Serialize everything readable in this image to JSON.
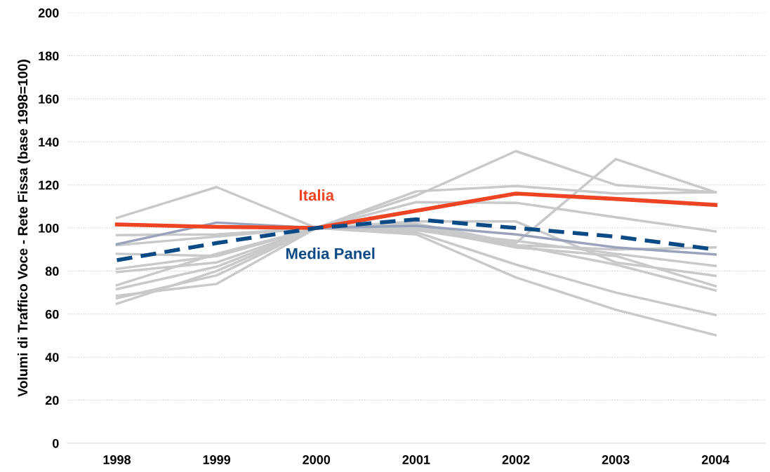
{
  "chart_data": {
    "type": "line",
    "ylabel": "Volumi di Traffico Voce - Rete Fissa (base 1998=100)",
    "categories": [
      "1998",
      "1999",
      "2000",
      "2001",
      "2002",
      "2003",
      "2004"
    ],
    "ylim": [
      0,
      200
    ],
    "yticks": [
      0,
      20,
      40,
      60,
      80,
      100,
      120,
      140,
      160,
      180,
      200
    ],
    "grid": "y",
    "legend": false,
    "series": [
      {
        "color": "#c8c9cb",
        "values": [
          104.7,
          119,
          100,
          115,
          135.7,
          120,
          116.6
        ]
      },
      {
        "color": "#c8c9cb",
        "values": [
          96.7,
          97,
          100,
          117,
          119.5,
          116,
          116.6
        ]
      },
      {
        "color": "#c8c9cb",
        "values": [
          67.4,
          78,
          100,
          102,
          93,
          132,
          116.6
        ]
      },
      {
        "color": "#c8c9cb",
        "values": [
          88,
          87,
          100,
          112,
          111.7,
          105,
          98.4
        ]
      },
      {
        "color": "#c8c9cb",
        "values": [
          81,
          87,
          100,
          101,
          92,
          90,
          91
        ]
      },
      {
        "color": "#c8c9cb",
        "values": [
          79.5,
          84,
          100,
          99,
          94,
          88,
          82.4
        ]
      },
      {
        "color": "#c8c9cb",
        "values": [
          73.4,
          88,
          100,
          103,
          103,
          84,
          77.8
        ]
      },
      {
        "color": "#c8c9cb",
        "values": [
          71.6,
          82,
          100,
          100,
          91,
          87,
          73
        ]
      },
      {
        "color": "#c8c9cb",
        "values": [
          68.5,
          74,
          100,
          99,
          92,
          83,
          71
        ]
      },
      {
        "color": "#c8c9cb",
        "values": [
          64.8,
          80,
          100,
          98,
          83,
          70,
          59.6
        ]
      },
      {
        "color": "#c8c9cb",
        "values": [
          92,
          96,
          100,
          97,
          77,
          62,
          50.2
        ]
      },
      {
        "color": "#9aa3bb",
        "values": [
          92.5,
          102.5,
          100,
          101,
          97,
          91,
          87.7
        ]
      },
      {
        "name": "Italia",
        "color": "#ee4423",
        "values": [
          101.6,
          100.5,
          100,
          108,
          116,
          113.5,
          110.7
        ]
      },
      {
        "name": "Media Panel",
        "color": "#0b4a85",
        "line_style": "dashed",
        "values": [
          85,
          93,
          100,
          104,
          100,
          96,
          90
        ]
      }
    ]
  }
}
